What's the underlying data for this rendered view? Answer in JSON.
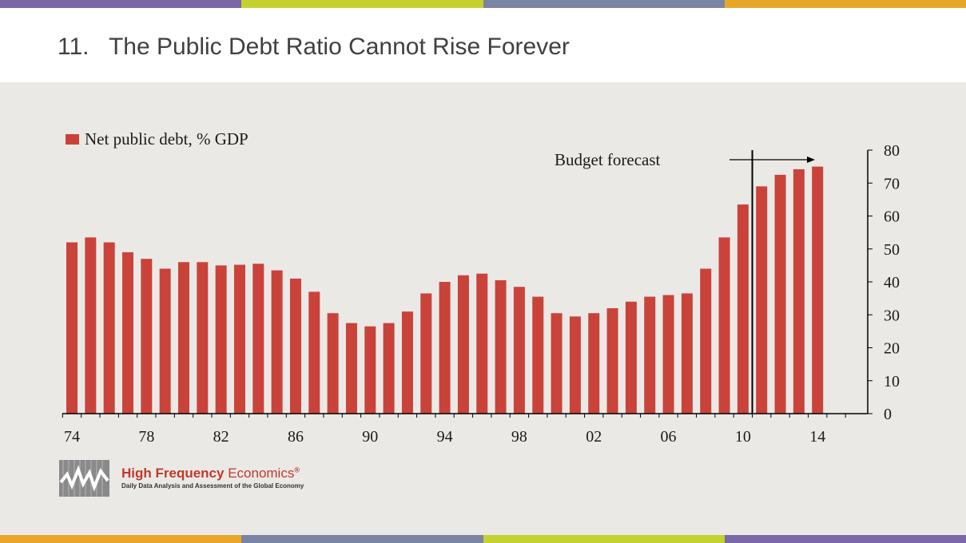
{
  "page": {
    "title": "11.   The Public Debt Ratio Cannot Rise Forever",
    "stripe_colors": [
      "#7b68a6",
      "#c5d12e",
      "#7a85a3",
      "#e8a72a"
    ],
    "bottom_stripe_colors": [
      "#e8a72a",
      "#7a85a3",
      "#c5d12e",
      "#7b68a6"
    ],
    "accent": "#c9433a"
  },
  "logo": {
    "name_bold": "High Frequency",
    "name_light": " Economics",
    "registered": "®",
    "tagline": "Daily Data Analysis and Assessment of the Global Economy",
    "icon": "zigzag-chart-icon"
  },
  "chart_data": {
    "type": "bar",
    "legend": "Net public debt, % GDP",
    "legend_position": "top-left",
    "series_color": "#c9433a",
    "annotation": "Budget forecast",
    "forecast_start_year": 2010.5,
    "x": [
      1974,
      1975,
      1976,
      1977,
      1978,
      1979,
      1980,
      1981,
      1982,
      1983,
      1984,
      1985,
      1986,
      1987,
      1988,
      1989,
      1990,
      1991,
      1992,
      1993,
      1994,
      1995,
      1996,
      1997,
      1998,
      1999,
      2000,
      2001,
      2002,
      2003,
      2004,
      2005,
      2006,
      2007,
      2008,
      2009,
      2010,
      2011,
      2012,
      2013,
      2014
    ],
    "values": [
      52,
      53.5,
      52,
      49,
      47,
      44,
      46,
      46,
      45,
      45.2,
      45.5,
      43.5,
      41,
      37,
      30.5,
      27.5,
      26.5,
      27.5,
      31,
      36.5,
      40,
      42,
      42.5,
      40.5,
      38.5,
      35.5,
      30.5,
      29.5,
      30.5,
      32,
      34,
      35.5,
      36,
      36.5,
      44,
      53.5,
      63.5,
      69,
      72.5,
      74.2,
      75
    ],
    "x_ticks": [
      "74",
      "78",
      "82",
      "86",
      "90",
      "94",
      "98",
      "02",
      "06",
      "10",
      "14"
    ],
    "x_tick_years": [
      1974,
      1978,
      1982,
      1986,
      1990,
      1994,
      1998,
      2002,
      2006,
      2010,
      2014
    ],
    "xlim": [
      1974,
      2017
    ],
    "ylim": [
      0,
      80
    ],
    "y_ticks": [
      "0",
      "10",
      "20",
      "30",
      "40",
      "50",
      "60",
      "70",
      "80"
    ],
    "y_axis_side": "right",
    "grid": false
  }
}
